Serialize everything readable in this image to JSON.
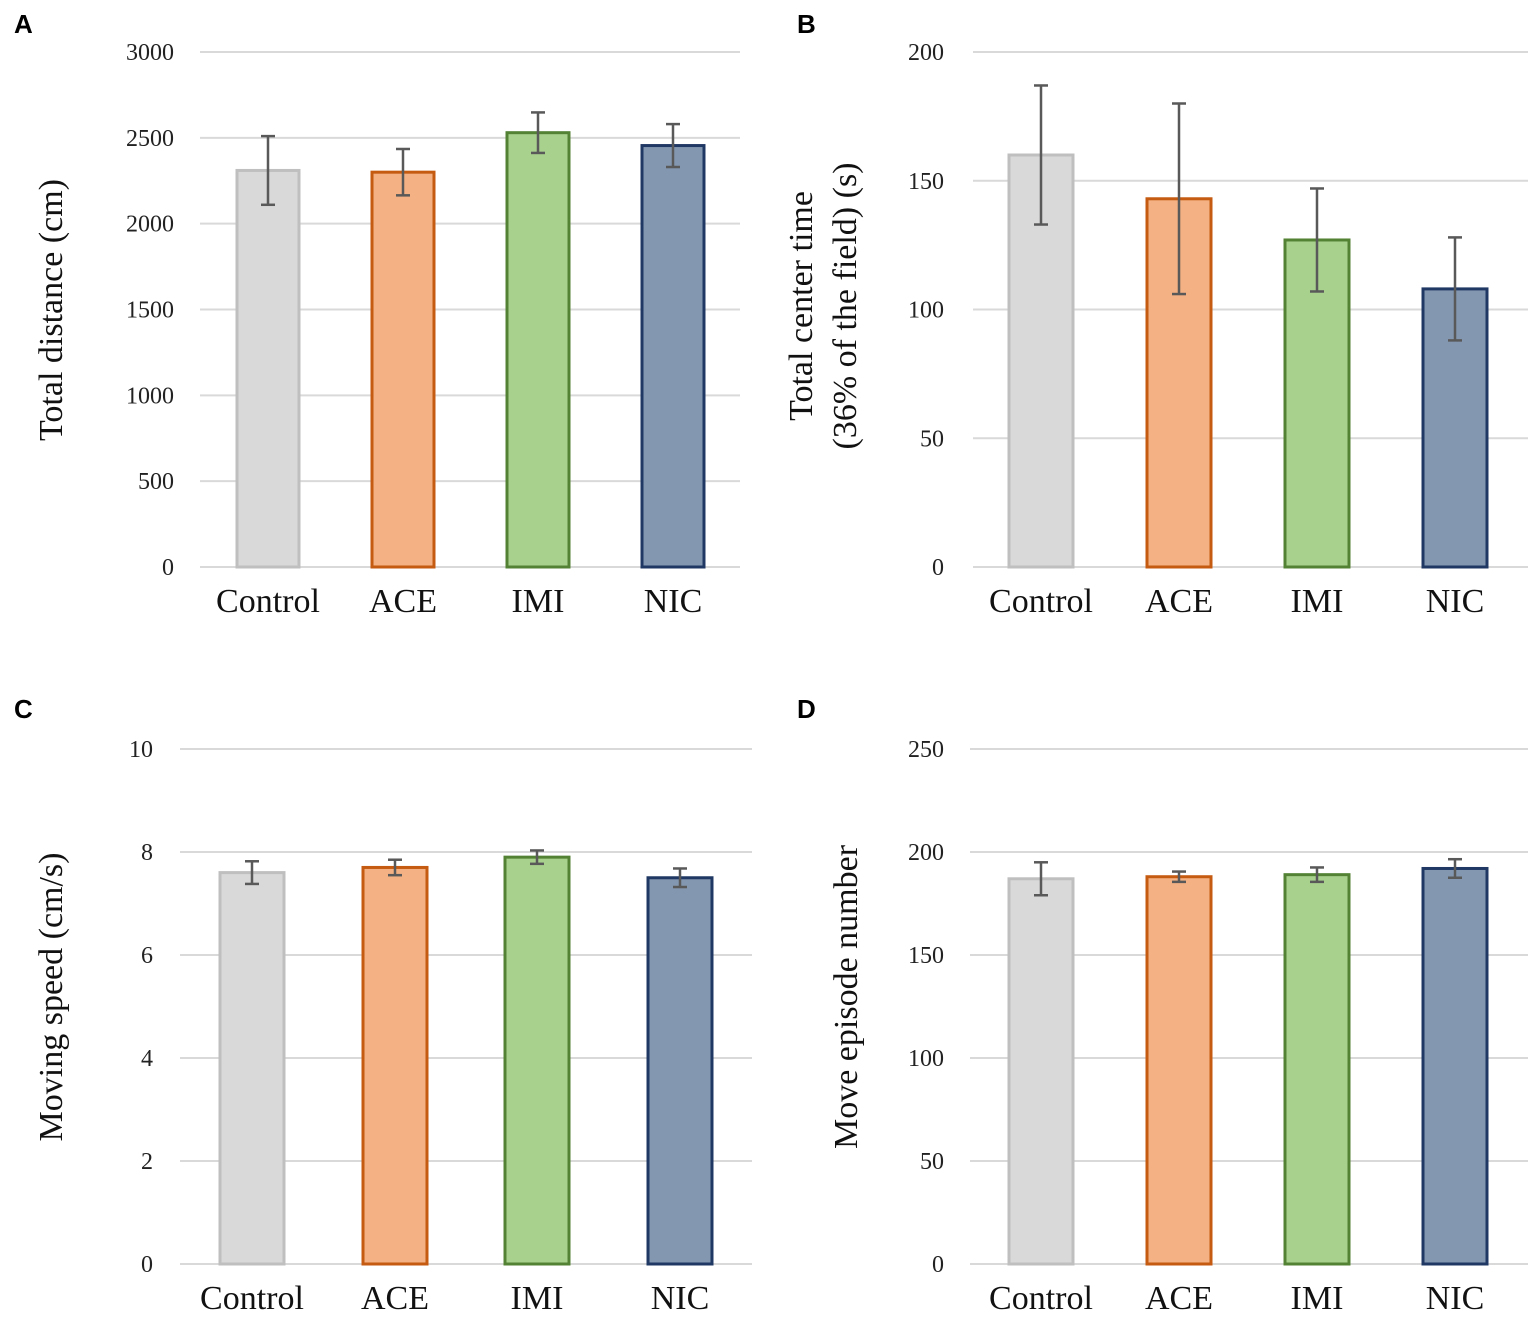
{
  "colors": {
    "Control": {
      "fill": "#d9d9d9",
      "stroke": "#bfbfbf"
    },
    "ACE": {
      "fill": "#f4b183",
      "stroke": "#c55a11"
    },
    "IMI": {
      "fill": "#a9d18e",
      "stroke": "#548235"
    },
    "NIC": {
      "fill": "#8497b0",
      "stroke": "#203864"
    },
    "error_bar": "#595959",
    "grid": "#d9d9d9"
  },
  "chart_data": [
    {
      "panel": "A",
      "type": "bar",
      "categories": [
        "Control",
        "ACE",
        "IMI",
        "NIC"
      ],
      "values": [
        2310,
        2300,
        2530,
        2455
      ],
      "errors": [
        200,
        135,
        118,
        125
      ],
      "ylabel": "Total distance (cm)",
      "ylim": [
        0,
        3000
      ],
      "yticks": [
        0,
        500,
        1000,
        1500,
        2000,
        2500,
        3000
      ],
      "grid": true
    },
    {
      "panel": "B",
      "type": "bar",
      "categories": [
        "Control",
        "ACE",
        "IMI",
        "NIC"
      ],
      "values": [
        160,
        143,
        127,
        108
      ],
      "errors": [
        27,
        37,
        20,
        20
      ],
      "ylabel_lines": [
        "Total center time",
        "(36% of the field) (s)"
      ],
      "ylim": [
        0,
        200
      ],
      "yticks": [
        0,
        50,
        100,
        150,
        200
      ],
      "grid": true
    },
    {
      "panel": "C",
      "type": "bar",
      "categories": [
        "Control",
        "ACE",
        "IMI",
        "NIC"
      ],
      "values": [
        7.6,
        7.7,
        7.9,
        7.5
      ],
      "errors": [
        0.22,
        0.15,
        0.13,
        0.18
      ],
      "ylabel": "Moving speed (cm/s)",
      "ylim": [
        0,
        10
      ],
      "yticks": [
        0,
        2,
        4,
        6,
        8,
        10
      ],
      "grid": true
    },
    {
      "panel": "D",
      "type": "bar",
      "categories": [
        "Control",
        "ACE",
        "IMI",
        "NIC"
      ],
      "values": [
        187,
        188,
        189,
        192
      ],
      "errors": [
        8,
        2.5,
        3.5,
        4.5
      ],
      "ylabel": "Move episode number",
      "ylim": [
        0,
        250
      ],
      "yticks": [
        0,
        50,
        100,
        150,
        200,
        250
      ],
      "grid": true
    }
  ]
}
